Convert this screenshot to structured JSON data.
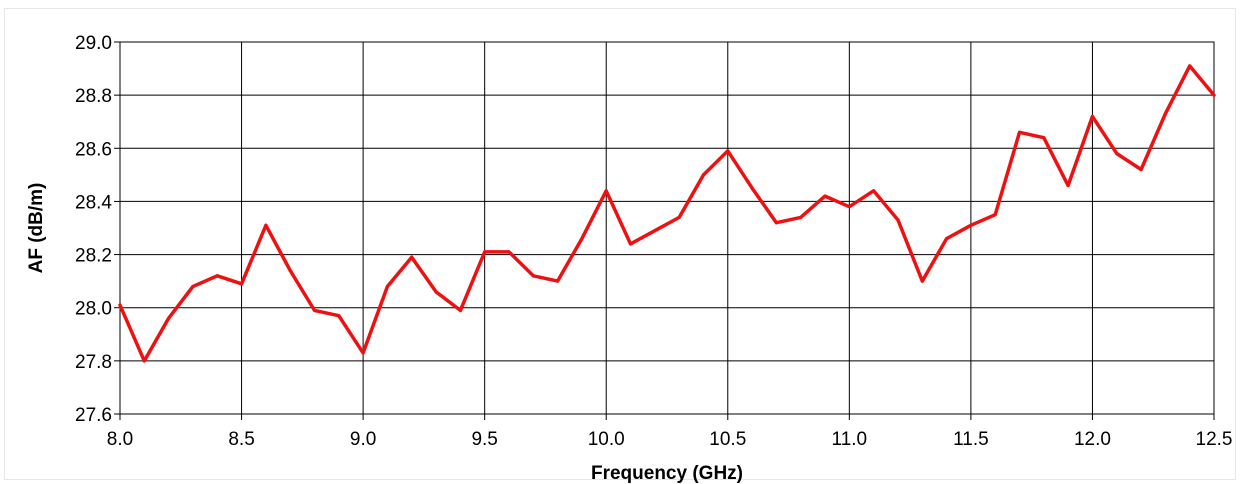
{
  "chart_data": {
    "type": "line",
    "title": "",
    "xlabel": "Frequency (GHz)",
    "ylabel": "AF (dB/m)",
    "xlim": [
      8.0,
      12.5
    ],
    "ylim": [
      27.6,
      29.0
    ],
    "xticks": [
      "8.0",
      "8.5",
      "9.0",
      "9.5",
      "10.0",
      "10.5",
      "11.0",
      "11.5",
      "12.0",
      "12.5"
    ],
    "yticks": [
      "27.6",
      "27.8",
      "28.0",
      "28.2",
      "28.4",
      "28.6",
      "28.8",
      "29.0"
    ],
    "grid": true,
    "legend": "none",
    "series": [
      {
        "color": "#ee1111",
        "x": [
          8.0,
          8.1,
          8.2,
          8.3,
          8.4,
          8.5,
          8.6,
          8.7,
          8.8,
          8.9,
          9.0,
          9.1,
          9.2,
          9.3,
          9.4,
          9.5,
          9.6,
          9.7,
          9.8,
          9.9,
          10.0,
          10.1,
          10.2,
          10.3,
          10.4,
          10.5,
          10.6,
          10.7,
          10.8,
          10.9,
          11.0,
          11.1,
          11.2,
          11.3,
          11.4,
          11.5,
          11.6,
          11.7,
          11.8,
          11.9,
          12.0,
          12.1,
          12.2,
          12.3,
          12.4,
          12.5
        ],
        "y": [
          28.01,
          27.8,
          27.96,
          28.08,
          28.12,
          28.09,
          28.31,
          28.14,
          27.99,
          27.97,
          27.83,
          28.08,
          28.19,
          28.06,
          27.99,
          28.21,
          28.21,
          28.12,
          28.1,
          28.26,
          28.44,
          28.24,
          28.29,
          28.34,
          28.5,
          28.59,
          28.45,
          28.32,
          28.34,
          28.42,
          28.38,
          28.44,
          28.33,
          28.1,
          28.26,
          28.31,
          28.35,
          28.66,
          28.64,
          28.46,
          28.72,
          28.58,
          28.52,
          28.73,
          28.91,
          28.8
        ]
      }
    ]
  }
}
